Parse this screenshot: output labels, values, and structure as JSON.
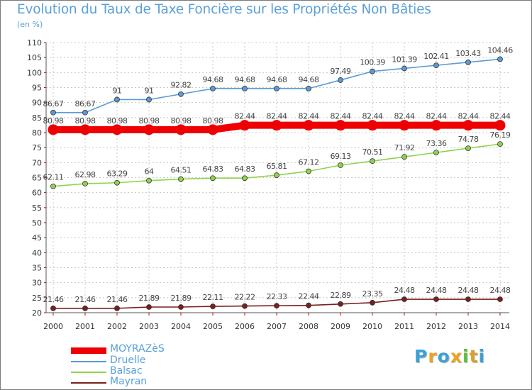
{
  "title": "Evolution du Taux de Taxe Foncière sur les Propriétés Non Bâties",
  "unit": "(en %)",
  "logo": {
    "letters": [
      "P",
      "r",
      "o",
      "x",
      "i",
      "t",
      "i"
    ],
    "colors": [
      "#3ca0d8",
      "#f0a020",
      "#3ca0d8",
      "#f0a020",
      "#5cbf3c",
      "#d8a030",
      "#3ca0d8"
    ]
  },
  "chart_data": {
    "type": "line",
    "categories": [
      "2000",
      "2001",
      "2002",
      "2003",
      "2004",
      "2005",
      "2006",
      "2007",
      "2008",
      "2009",
      "2010",
      "2011",
      "2012",
      "2013",
      "2014"
    ],
    "ylim": [
      20,
      110
    ],
    "yticks": [
      20,
      25,
      30,
      35,
      40,
      45,
      50,
      55,
      60,
      65,
      70,
      75,
      80,
      85,
      90,
      95,
      100,
      105,
      110
    ],
    "grid": true,
    "series": [
      {
        "name": "MOYRAZèS",
        "color": "#ee0000",
        "values": [
          80.98,
          80.98,
          80.98,
          80.98,
          80.98,
          80.98,
          82.44,
          82.44,
          82.44,
          82.44,
          82.44,
          82.44,
          82.44,
          82.44,
          82.44
        ],
        "labels": [
          "80.98",
          "80.98",
          "80.98",
          "80.98",
          "80.98",
          "80.98",
          "82.44",
          "82.44",
          "82.44",
          "82.44",
          "82.44",
          "82.44",
          "82.44",
          "82.44",
          "82.44"
        ]
      },
      {
        "name": "Druelle",
        "color": "#5b9bd5",
        "values": [
          86.67,
          86.67,
          91,
          91,
          92.82,
          94.68,
          94.68,
          94.68,
          94.68,
          97.49,
          100.39,
          101.39,
          102.41,
          103.43,
          104.46
        ],
        "labels": [
          "86.67",
          "86.67",
          "91",
          "91",
          "92.82",
          "94.68",
          "94.68",
          "94.68",
          "94.68",
          "97.49",
          "100.39",
          "101.39",
          "102.41",
          "103.43",
          "104.46"
        ]
      },
      {
        "name": "Balsac",
        "color": "#8fd24e",
        "values": [
          62.11,
          62.98,
          63.29,
          64,
          64.51,
          64.83,
          64.83,
          65.81,
          67.12,
          69.13,
          70.51,
          71.92,
          73.36,
          74.78,
          76.19
        ],
        "labels": [
          "62.11",
          "62.98",
          "63.29",
          "64",
          "64.51",
          "64.83",
          "64.83",
          "65.81",
          "67.12",
          "69.13",
          "70.51",
          "71.92",
          "73.36",
          "74.78",
          "76.19"
        ]
      },
      {
        "name": "Mayran",
        "color": "#7a1e1e",
        "values": [
          21.46,
          21.46,
          21.46,
          21.89,
          21.89,
          22.11,
          22.22,
          22.33,
          22.44,
          22.89,
          23.35,
          24.48,
          24.48,
          24.48,
          24.48
        ],
        "labels": [
          "21.46",
          "21.46",
          "21.46",
          "21.89",
          "21.89",
          "22.11",
          "22.22",
          "22.33",
          "22.44",
          "22.89",
          "23.35",
          "24.48",
          "24.48",
          "24.48",
          "24.48"
        ]
      }
    ]
  }
}
